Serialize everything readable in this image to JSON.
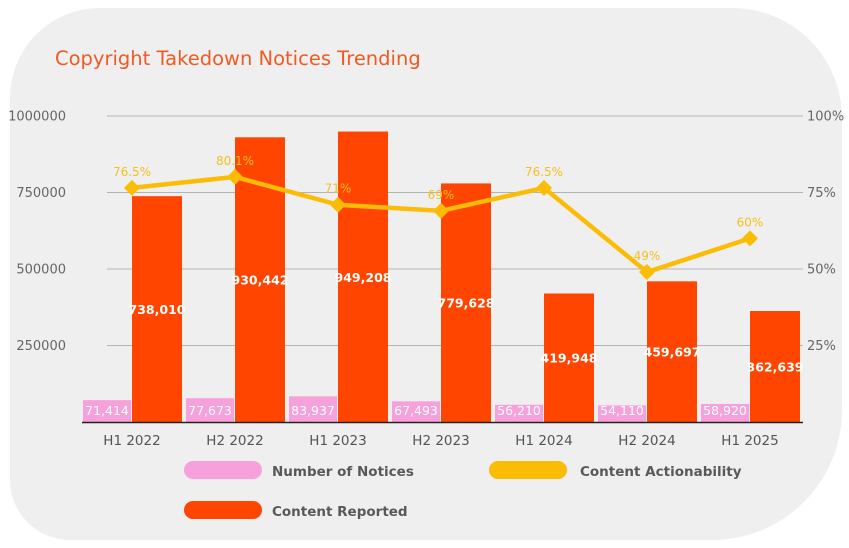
{
  "colors": {
    "notices": "#f7a1dc",
    "reported": "#ff4500",
    "actionability": "#fbbc05",
    "title": "#f05a22",
    "grid": "#b4b4b4"
  },
  "chart_data": {
    "type": "bar",
    "title": "Copyright Takedown Notices Trending",
    "categories": [
      "H1 2022",
      "H2 2022",
      "H1 2023",
      "H2 2023",
      "H1 2024",
      "H2 2024",
      "H1 2025"
    ],
    "ylim": [
      0,
      1000000
    ],
    "y_ticks": [
      "1000000",
      "750000",
      "500000",
      "250000"
    ],
    "y2lim": [
      0,
      100
    ],
    "y2_ticks": [
      "100%",
      "75%",
      "50%",
      "25%"
    ],
    "grid": true,
    "legend_position": "bottom",
    "series": [
      {
        "name": "Number of Notices",
        "type": "bar",
        "values": [
          71414,
          77673,
          83937,
          67493,
          56210,
          54110,
          58920
        ],
        "labels": [
          "71,414",
          "77,673",
          "83,937",
          "67,493",
          "56,210",
          "54,110",
          "58,920"
        ]
      },
      {
        "name": "Content Reported",
        "type": "bar",
        "values": [
          738010,
          930442,
          949208,
          779628,
          419948,
          459697,
          362639
        ],
        "labels": [
          "738,010",
          "930,442",
          "949,208",
          "779,628",
          "419,948",
          "459,697",
          "362,639"
        ]
      },
      {
        "name": "Content Actionability",
        "type": "line",
        "axis": "right",
        "values": [
          76.5,
          80.1,
          71,
          69,
          76.5,
          49,
          60
        ],
        "labels": [
          "76.5%",
          "80.1%",
          "71%",
          "69%",
          "76.5%",
          "49%",
          "60%"
        ]
      }
    ],
    "legend": [
      "Number of Notices",
      "Content Actionability",
      "Content Reported"
    ]
  }
}
